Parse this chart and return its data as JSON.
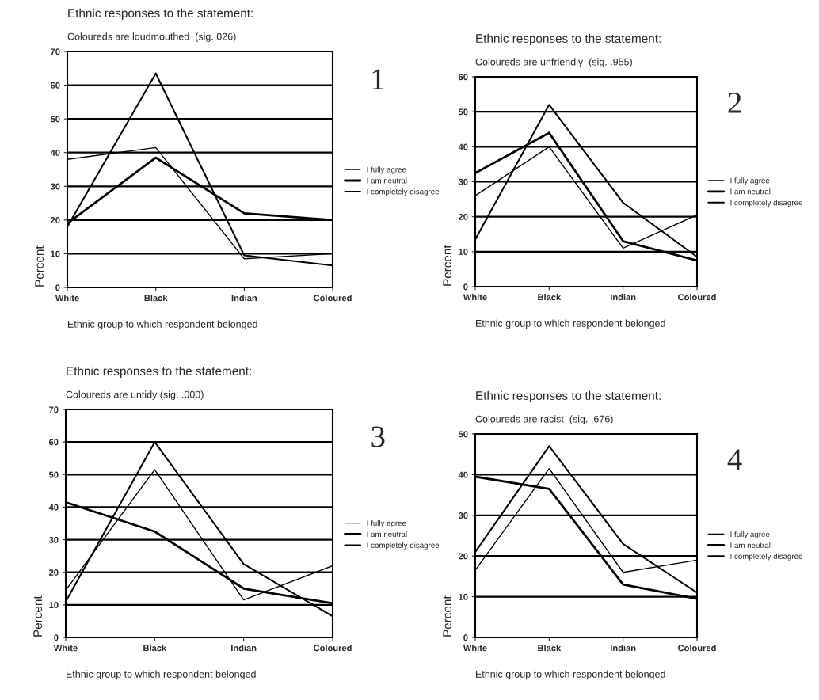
{
  "chart_data": [
    {
      "type": "line",
      "title": "Ethnic responses to the statement:",
      "subtitle": "Coloureds are loudmouthed  (sig. 026)",
      "xlabel": "Ethnic group to which respondent belonged",
      "ylabel": "Percent",
      "annotations": [
        "1"
      ],
      "categories": [
        "White",
        "Black",
        "Indian",
        "Coloured"
      ],
      "ylim": [
        0,
        70
      ],
      "yticks": [
        0,
        10,
        20,
        30,
        40,
        50,
        60,
        70
      ],
      "grid": "y",
      "legend": "right",
      "marker": "none",
      "line_style": "solid",
      "series": [
        {
          "name": "I fully agree",
          "color": "#000000",
          "values": [
            38,
            41.5,
            8.5,
            10
          ]
        },
        {
          "name": "I am neutral",
          "color": "#000000",
          "values": [
            19,
            38.5,
            22,
            20
          ]
        },
        {
          "name": "I completely disagree",
          "color": "#000000",
          "values": [
            18,
            63.5,
            9.5,
            6.5
          ]
        }
      ]
    },
    {
      "type": "line",
      "title": "Ethnic responses to the statement:",
      "subtitle": "Coloureds are unfriendly  (sig. .955)",
      "xlabel": "Ethnic group to which respondent belonged",
      "ylabel": "Percent",
      "annotations": [
        "2"
      ],
      "categories": [
        "White",
        "Black",
        "Indian",
        "Coloured"
      ],
      "ylim": [
        0,
        60
      ],
      "yticks": [
        0,
        10,
        20,
        30,
        40,
        50,
        60
      ],
      "grid": "y",
      "legend": "right",
      "marker": "none",
      "line_style": "solid",
      "series": [
        {
          "name": "I fully agree",
          "color": "#000000",
          "values": [
            26,
            40,
            11,
            20.5
          ]
        },
        {
          "name": "I am neutral",
          "color": "#000000",
          "values": [
            32.5,
            44,
            13,
            7.5
          ]
        },
        {
          "name": "I completely disagree",
          "color": "#000000",
          "values": [
            13.5,
            52,
            24,
            8.5
          ]
        }
      ]
    },
    {
      "type": "line",
      "title": "Ethnic responses to the statement:",
      "subtitle": "Coloureds are untidy (sig. .000)",
      "xlabel": "Ethnic group to which respondent belonged",
      "ylabel": "Percent",
      "annotations": [
        "3"
      ],
      "categories": [
        "White",
        "Black",
        "Indian",
        "Coloured"
      ],
      "ylim": [
        0,
        70
      ],
      "yticks": [
        0,
        10,
        20,
        30,
        40,
        50,
        60,
        70
      ],
      "grid": "y",
      "legend": "right",
      "marker": "none",
      "line_style": "solid",
      "series": [
        {
          "name": "I fully agree",
          "color": "#000000",
          "values": [
            14.5,
            51.5,
            11.5,
            22
          ]
        },
        {
          "name": "I am neutral",
          "color": "#000000",
          "values": [
            41.5,
            32.5,
            15,
            10.5
          ]
        },
        {
          "name": "I completely disagree",
          "color": "#000000",
          "values": [
            11,
            60,
            22.5,
            6.5
          ]
        }
      ]
    },
    {
      "type": "line",
      "title": "Ethnic responses to the statement:",
      "subtitle": "Coloureds are racist  (sig. .676)",
      "xlabel": "Ethnic group to which respondent belonged",
      "ylabel": "Percent",
      "annotations": [
        "4"
      ],
      "categories": [
        "White",
        "Black",
        "Indian",
        "Coloured"
      ],
      "ylim": [
        0,
        50
      ],
      "yticks": [
        0,
        10,
        20,
        30,
        40,
        50
      ],
      "grid": "y",
      "legend": "right",
      "marker": "none",
      "line_style": "solid",
      "series": [
        {
          "name": "I fully agree",
          "color": "#000000",
          "values": [
            16.5,
            41.5,
            16,
            19
          ]
        },
        {
          "name": "I am neutral",
          "color": "#000000",
          "values": [
            39.5,
            36.5,
            13,
            9.5
          ]
        },
        {
          "name": "I completely disagree",
          "color": "#000000",
          "values": [
            21,
            47,
            23,
            11
          ]
        }
      ]
    }
  ]
}
